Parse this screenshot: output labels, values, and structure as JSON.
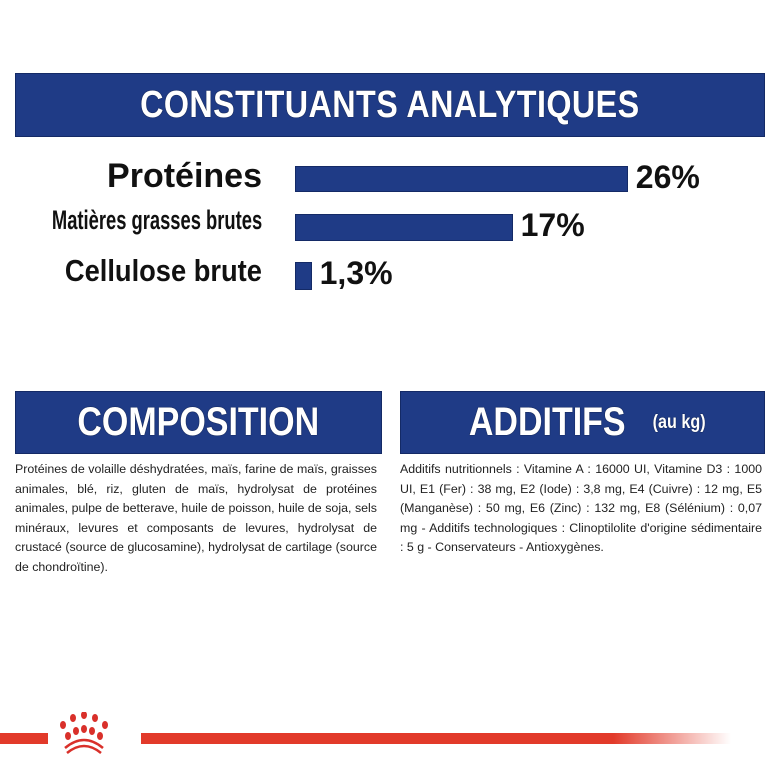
{
  "header": {
    "title": "CONSTITUANTS ANALYTIQUES"
  },
  "chart_data": {
    "type": "bar",
    "orientation": "horizontal",
    "categories": [
      "Protéines",
      "Matières grasses brutes",
      "Cellulose brute"
    ],
    "values": [
      26,
      17,
      1.3
    ],
    "data_labels": [
      "26%",
      "17%",
      "1,3%"
    ],
    "title": "CONSTITUANTS ANALYTIQUES",
    "xlabel": "",
    "ylabel": "",
    "grid": false,
    "bar_color": "#1f3b86"
  },
  "composition": {
    "title": "COMPOSITION",
    "text": "Protéines de volaille déshydratées, maïs, farine de maïs, graisses animales, blé, riz, gluten de maïs, hydrolysat de protéines animales, pulpe de betterave, huile de poisson, huile de soja, sels minéraux, levures et composants de levures, hydrolysat de crustacé (source de glucosamine), hydrolysat de cartilage (source de chondroïtine)."
  },
  "additifs": {
    "title": "ADDITIFS",
    "subtitle": "(au kg)",
    "text": "Additifs nutritionnels : Vitamine A : 16000 UI, Vitamine D3 : 1000 UI, E1 (Fer) : 38 mg, E2 (Iode) : 3,8 mg, E4 (Cuivre) : 12 mg, E5 (Manganèse) : 50 mg, E6 (Zinc) : 132 mg, E8 (Sélénium) : 0,07 mg - Additifs technologiques : Clinoptilolite d'origine sédimentaire : 5 g - Conservateurs - Antioxygènes."
  },
  "footer": {
    "logo": "royal-canin-crown",
    "accent": "#e23a2a"
  }
}
